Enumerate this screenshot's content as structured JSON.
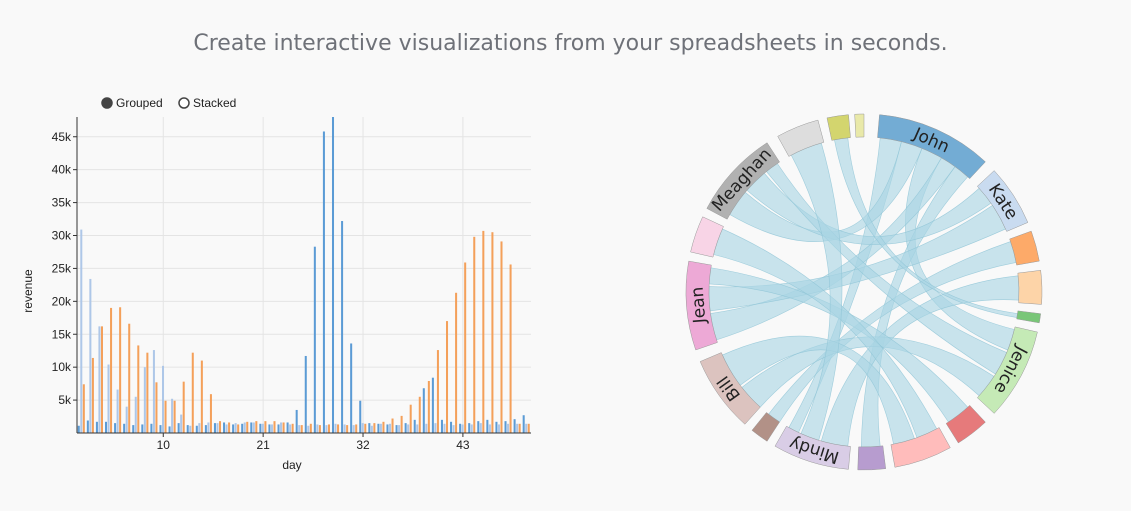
{
  "headline": "Create interactive visualizations from your spreadsheets in seconds.",
  "chart_data": [
    {
      "type": "bar",
      "mode_options": [
        {
          "label": "Grouped",
          "selected": true
        },
        {
          "label": "Stacked",
          "selected": false
        }
      ],
      "xlabel": "day",
      "ylabel": "revenue",
      "ylim": [
        0,
        48000
      ],
      "y_ticks": [
        5000,
        10000,
        15000,
        20000,
        25000,
        30000,
        35000,
        40000,
        45000
      ],
      "y_tick_labels": [
        "5k",
        "10k",
        "15k",
        "20k",
        "25k",
        "30k",
        "35k",
        "40k",
        "45k"
      ],
      "x_ticks": [
        10,
        21,
        32,
        43
      ],
      "grid": true,
      "x": [
        1,
        2,
        3,
        4,
        5,
        6,
        7,
        8,
        9,
        10,
        11,
        12,
        13,
        14,
        15,
        16,
        17,
        18,
        19,
        20,
        21,
        22,
        23,
        24,
        25,
        26,
        27,
        28,
        29,
        30,
        31,
        32,
        33,
        34,
        35,
        36,
        37,
        38,
        39,
        40,
        41,
        42,
        43,
        44,
        45,
        46,
        47,
        48,
        49,
        50
      ],
      "series": [
        {
          "color": "#5b9bd5",
          "values": [
            1100,
            1900,
            1700,
            1700,
            1500,
            1400,
            1200,
            1300,
            1400,
            1200,
            1000,
            1500,
            1200,
            1100,
            1200,
            1500,
            1600,
            1300,
            1400,
            1600,
            1400,
            1300,
            1300,
            1600,
            3500,
            11700,
            28300,
            45800,
            48000,
            32200,
            13600,
            4900,
            1500,
            1400,
            1300,
            1200,
            1500,
            2000,
            6800,
            8400,
            2000,
            1700,
            1400,
            1500,
            1800,
            2000,
            1700,
            1800,
            2100,
            2700
          ]
        },
        {
          "color": "#aec7e8",
          "values": [
            30900,
            23400,
            16200,
            10400,
            6600,
            4000,
            5500,
            10000,
            12600,
            10200,
            5200,
            2800,
            1100,
            1500,
            1600,
            1500,
            1300,
            1500,
            1600,
            1600,
            1400,
            1300,
            1600,
            1300,
            1200,
            1100,
            1300,
            1200,
            1400,
            1300,
            1200,
            1500,
            1100,
            1400,
            1400,
            1200,
            1300,
            1300,
            1400,
            1500,
            1400,
            1200,
            1300,
            1300,
            1500,
            1300,
            1300,
            1400,
            1400,
            1400
          ]
        },
        {
          "color": "#f4a05a",
          "values": [
            7400,
            11400,
            16200,
            19000,
            19100,
            16600,
            13300,
            12200,
            7700,
            4900,
            4900,
            7800,
            12200,
            11000,
            5900,
            1800,
            1600,
            1300,
            1700,
            1800,
            1800,
            1800,
            1600,
            1400,
            1200,
            1400,
            1200,
            1300,
            1300,
            1200,
            1300,
            1400,
            1500,
            1700,
            2200,
            2600,
            4300,
            5500,
            7900,
            12600,
            17000,
            21300,
            25900,
            29800,
            30700,
            30500,
            29100,
            25600,
            1400,
            1400
          ]
        }
      ]
    },
    {
      "type": "chord",
      "groups": [
        {
          "label": "John",
          "color": "#73acd4"
        },
        {
          "label": "Kate",
          "color": "#c9dbf0"
        },
        {
          "label": "",
          "color": "#fdaa69"
        },
        {
          "label": "",
          "color": "#fdd4a8"
        },
        {
          "label": "",
          "color": "#79c678"
        },
        {
          "label": "Jenice",
          "color": "#c5eab6"
        },
        {
          "label": "",
          "color": "#e67a7b"
        },
        {
          "label": "",
          "color": "#ffbcbb"
        },
        {
          "label": "",
          "color": "#b79ccf"
        },
        {
          "label": "Mindy",
          "color": "#d9cde6"
        },
        {
          "label": "",
          "color": "#b29187"
        },
        {
          "label": "Bill",
          "color": "#dcc3bf"
        },
        {
          "label": "Jean",
          "color": "#eda9d6"
        },
        {
          "label": "",
          "color": "#f8d4e6"
        },
        {
          "label": "Meaghan",
          "color": "#b1b1b1"
        },
        {
          "label": "",
          "color": "#dddddd"
        },
        {
          "label": "",
          "color": "#d3d56e"
        },
        {
          "label": "",
          "color": "#e9e9a9"
        }
      ],
      "ribbon_color": "#a9d5e3"
    }
  ]
}
